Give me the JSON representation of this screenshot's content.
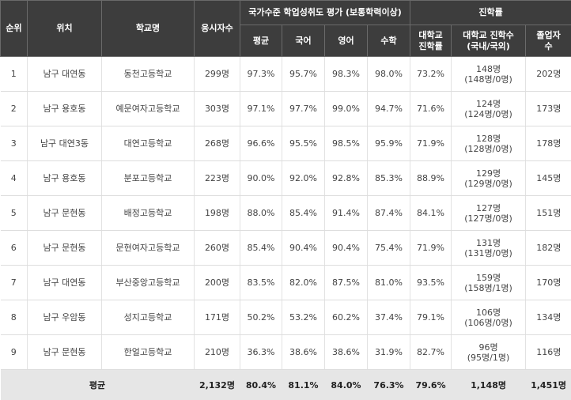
{
  "headers": {
    "rank": "순위",
    "location": "위치",
    "school": "학교명",
    "takers": "응시자수",
    "assessment_group": "국가수준 학업성취도 평가 (보통학력이상)",
    "avg": "평균",
    "korean": "국어",
    "english": "영어",
    "math": "수학",
    "advancement_group": "진학률",
    "univ_rate_line1": "대학교",
    "univ_rate_line2": "진학률",
    "univ_count_line1": "대학교 진학수",
    "univ_count_line2": "(국내/국외)",
    "grads_line1": "졸업자",
    "grads_line2": "수"
  },
  "rows": [
    {
      "rank": "1",
      "location": "남구 대연동",
      "school": "동천고등학교",
      "takers": "299명",
      "avg": "97.3%",
      "korean": "95.7%",
      "english": "98.3%",
      "math": "98.0%",
      "univ_rate": "73.2%",
      "univ_count": "148명",
      "univ_split": "(148명/0명)",
      "grads": "202명"
    },
    {
      "rank": "2",
      "location": "남구 용호동",
      "school": "예문여자고등학교",
      "takers": "303명",
      "avg": "97.1%",
      "korean": "97.7%",
      "english": "99.0%",
      "math": "94.7%",
      "univ_rate": "71.6%",
      "univ_count": "124명",
      "univ_split": "(124명/0명)",
      "grads": "173명"
    },
    {
      "rank": "3",
      "location": "남구 대연3동",
      "school": "대연고등학교",
      "takers": "268명",
      "avg": "96.6%",
      "korean": "95.5%",
      "english": "98.5%",
      "math": "95.9%",
      "univ_rate": "71.9%",
      "univ_count": "128명",
      "univ_split": "(128명/0명)",
      "grads": "178명"
    },
    {
      "rank": "4",
      "location": "남구 용호동",
      "school": "분포고등학교",
      "takers": "223명",
      "avg": "90.0%",
      "korean": "92.0%",
      "english": "92.8%",
      "math": "85.3%",
      "univ_rate": "88.9%",
      "univ_count": "129명",
      "univ_split": "(129명/0명)",
      "grads": "145명"
    },
    {
      "rank": "5",
      "location": "남구 문현동",
      "school": "배정고등학교",
      "takers": "198명",
      "avg": "88.0%",
      "korean": "85.4%",
      "english": "91.4%",
      "math": "87.4%",
      "univ_rate": "84.1%",
      "univ_count": "127명",
      "univ_split": "(127명/0명)",
      "grads": "151명"
    },
    {
      "rank": "6",
      "location": "남구 문현동",
      "school": "문현여자고등학교",
      "takers": "260명",
      "avg": "85.4%",
      "korean": "90.4%",
      "english": "90.4%",
      "math": "75.4%",
      "univ_rate": "71.9%",
      "univ_count": "131명",
      "univ_split": "(131명/0명)",
      "grads": "182명"
    },
    {
      "rank": "7",
      "location": "남구 대연동",
      "school": "부산중앙고등학교",
      "takers": "200명",
      "avg": "83.5%",
      "korean": "82.0%",
      "english": "87.5%",
      "math": "81.0%",
      "univ_rate": "93.5%",
      "univ_count": "159명",
      "univ_split": "(158명/1명)",
      "grads": "170명"
    },
    {
      "rank": "8",
      "location": "남구 우암동",
      "school": "성지고등학교",
      "takers": "171명",
      "avg": "50.2%",
      "korean": "53.2%",
      "english": "60.2%",
      "math": "37.4%",
      "univ_rate": "79.1%",
      "univ_count": "106명",
      "univ_split": "(106명/0명)",
      "grads": "134명"
    },
    {
      "rank": "9",
      "location": "남구 문현동",
      "school": "한얼고등학교",
      "takers": "210명",
      "avg": "36.3%",
      "korean": "38.6%",
      "english": "38.6%",
      "math": "31.9%",
      "univ_rate": "82.7%",
      "univ_count": "96명",
      "univ_split": "(95명/1명)",
      "grads": "116명"
    }
  ],
  "average_row": {
    "label": "평균",
    "takers": "2,132명",
    "avg": "80.4%",
    "korean": "81.1%",
    "english": "84.0%",
    "math": "76.3%",
    "univ_rate": "79.6%",
    "univ_count": "1,148명",
    "grads": "1,451명"
  }
}
